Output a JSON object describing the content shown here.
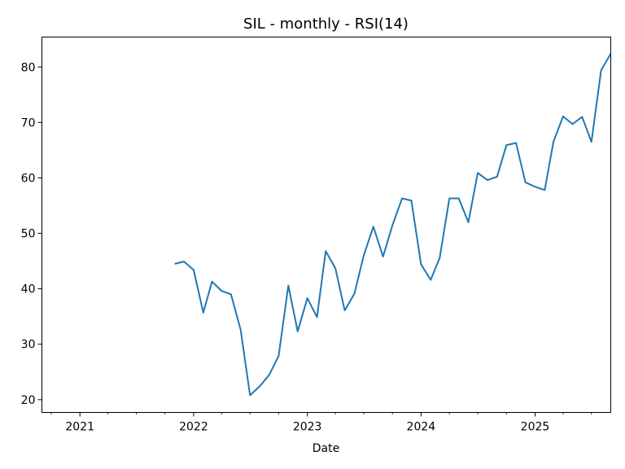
{
  "chart_data": {
    "type": "line",
    "title": "SIL - monthly - RSI(14)",
    "xlabel": "Date",
    "ylabel": "",
    "grid": false,
    "legend": "none",
    "ylim": [
      17.7,
      85.4
    ],
    "xlim": [
      "2020-09-01",
      "2025-09-01"
    ],
    "y_ticks": [
      20,
      30,
      40,
      50,
      60,
      70,
      80
    ],
    "x_ticks": [
      {
        "label": "2021",
        "date": "2021-01-01"
      },
      {
        "label": "2022",
        "date": "2022-01-01"
      },
      {
        "label": "2023",
        "date": "2023-01-01"
      },
      {
        "label": "2024",
        "date": "2024-01-01"
      },
      {
        "label": "2025",
        "date": "2025-01-01"
      }
    ],
    "series": [
      {
        "color": "#1f77b4",
        "x": [
          "2021-11-01",
          "2021-12-01",
          "2022-01-01",
          "2022-02-01",
          "2022-03-01",
          "2022-04-01",
          "2022-05-01",
          "2022-06-01",
          "2022-07-01",
          "2022-08-01",
          "2022-09-01",
          "2022-10-01",
          "2022-11-01",
          "2022-12-01",
          "2023-01-01",
          "2023-02-01",
          "2023-03-01",
          "2023-04-01",
          "2023-05-01",
          "2023-06-01",
          "2023-07-01",
          "2023-08-01",
          "2023-09-01",
          "2023-10-01",
          "2023-11-01",
          "2023-12-01",
          "2024-01-01",
          "2024-02-01",
          "2024-03-01",
          "2024-04-01",
          "2024-05-01",
          "2024-06-01",
          "2024-07-01",
          "2024-08-01",
          "2024-09-01",
          "2024-10-01",
          "2024-11-01",
          "2024-12-01",
          "2025-01-01",
          "2025-02-01",
          "2025-03-01",
          "2025-04-01",
          "2025-05-01",
          "2025-06-01",
          "2025-07-01",
          "2025-08-01",
          "2025-09-01"
        ],
        "y": [
          44.5,
          44.9,
          43.4,
          35.7,
          41.3,
          39.6,
          39.0,
          32.6,
          20.8,
          22.4,
          24.5,
          27.9,
          40.6,
          32.3,
          38.3,
          34.9,
          46.8,
          43.7,
          36.1,
          39.1,
          46.0,
          51.2,
          45.8,
          51.4,
          56.3,
          55.9,
          44.4,
          41.6,
          45.6,
          56.3,
          56.3,
          52.0,
          60.9,
          59.6,
          60.2,
          65.9,
          66.3,
          59.2,
          58.4,
          57.8,
          66.5,
          71.1,
          69.7,
          71.0,
          66.5,
          79.4,
          82.4
        ]
      }
    ]
  }
}
